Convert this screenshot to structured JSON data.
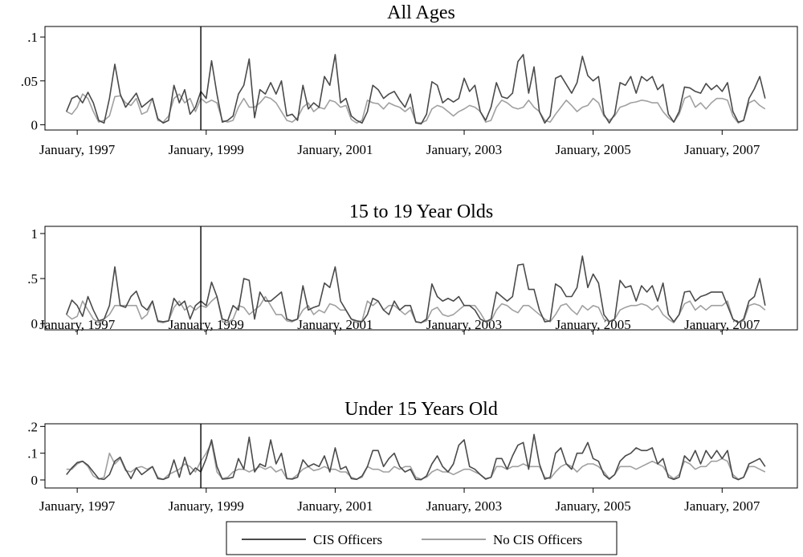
{
  "colors": {
    "cis": "#4a4a4a",
    "no_cis": "#a0a0a0",
    "axis": "#000000",
    "background": "#ffffff"
  },
  "legend": {
    "position": "bottom-center",
    "entries": [
      {
        "key": "cis",
        "label": "CIS Officers"
      },
      {
        "key": "no_cis",
        "label": "No CIS Officers"
      }
    ]
  },
  "chart_data": [
    {
      "type": "line",
      "title": "All Ages",
      "xlabel": "",
      "ylabel": "",
      "ylim": [
        -0.006,
        0.112
      ],
      "yticks": [
        0,
        0.05,
        0.1
      ],
      "ytick_labels": [
        "0",
        ".05",
        ".1"
      ],
      "xlim": [
        "1996-07",
        "2008-03"
      ],
      "xticks": [
        "1997-01",
        "1999-01",
        "2001-01",
        "2003-01",
        "2005-01",
        "2007-01"
      ],
      "xtick_labels": [
        "January, 1997",
        "January, 1999",
        "January, 2001",
        "January, 2003",
        "January, 2005",
        "January, 2007"
      ],
      "x_start": "1996-11",
      "x_end": "2008-02",
      "reference_line": "1998-12",
      "series": [
        {
          "key": "cis",
          "name": "CIS Officers",
          "values": [
            0.015,
            0.03,
            0.033,
            0.025,
            0.037,
            0.025,
            0.005,
            0.002,
            0.03,
            0.069,
            0.035,
            0.02,
            0.028,
            0.036,
            0.02,
            0.025,
            0.03,
            0.007,
            0.002,
            0.005,
            0.045,
            0.025,
            0.04,
            0.012,
            0.02,
            0.038,
            0.03,
            0.073,
            0.035,
            0.003,
            0.005,
            0.01,
            0.035,
            0.045,
            0.075,
            0.008,
            0.04,
            0.035,
            0.048,
            0.035,
            0.05,
            0.01,
            0.012,
            0.005,
            0.045,
            0.018,
            0.025,
            0.02,
            0.055,
            0.045,
            0.08,
            0.025,
            0.03,
            0.01,
            0.005,
            0.002,
            0.015,
            0.045,
            0.04,
            0.03,
            0.035,
            0.038,
            0.028,
            0.02,
            0.035,
            0.002,
            0.001,
            0.012,
            0.049,
            0.045,
            0.025,
            0.03,
            0.026,
            0.03,
            0.053,
            0.038,
            0.045,
            0.015,
            0.005,
            0.02,
            0.048,
            0.032,
            0.03,
            0.036,
            0.072,
            0.08,
            0.036,
            0.066,
            0.015,
            0.002,
            0.01,
            0.053,
            0.056,
            0.046,
            0.036,
            0.048,
            0.078,
            0.056,
            0.05,
            0.055,
            0.012,
            0.002,
            0.012,
            0.048,
            0.045,
            0.055,
            0.036,
            0.055,
            0.05,
            0.055,
            0.04,
            0.046,
            0.012,
            0.003,
            0.015,
            0.043,
            0.042,
            0.038,
            0.036,
            0.047,
            0.04,
            0.045,
            0.038,
            0.048,
            0.015,
            0.003,
            0.005,
            0.03,
            0.041,
            0.055,
            0.03
          ]
        },
        {
          "key": "no_cis",
          "name": "No CIS Officers",
          "values": [
            0.015,
            0.012,
            0.02,
            0.035,
            0.03,
            0.015,
            0.003,
            0.005,
            0.01,
            0.032,
            0.033,
            0.025,
            0.022,
            0.03,
            0.012,
            0.015,
            0.03,
            0.005,
            0.003,
            0.01,
            0.03,
            0.035,
            0.025,
            0.03,
            0.015,
            0.03,
            0.025,
            0.028,
            0.025,
            0.005,
            0.003,
            0.005,
            0.02,
            0.03,
            0.02,
            0.02,
            0.025,
            0.032,
            0.03,
            0.025,
            0.015,
            0.005,
            0.003,
            0.008,
            0.02,
            0.025,
            0.015,
            0.02,
            0.018,
            0.028,
            0.026,
            0.02,
            0.022,
            0.006,
            0.002,
            0.005,
            0.028,
            0.025,
            0.024,
            0.018,
            0.025,
            0.022,
            0.02,
            0.015,
            0.02,
            0.003,
            0.002,
            0.005,
            0.018,
            0.022,
            0.02,
            0.015,
            0.01,
            0.015,
            0.018,
            0.022,
            0.02,
            0.015,
            0.003,
            0.005,
            0.02,
            0.028,
            0.025,
            0.02,
            0.018,
            0.02,
            0.028,
            0.02,
            0.015,
            0.005,
            0.003,
            0.012,
            0.02,
            0.028,
            0.022,
            0.015,
            0.02,
            0.022,
            0.03,
            0.025,
            0.01,
            0.005,
            0.01,
            0.02,
            0.022,
            0.025,
            0.026,
            0.028,
            0.027,
            0.025,
            0.025,
            0.015,
            0.008,
            0.003,
            0.012,
            0.03,
            0.033,
            0.02,
            0.025,
            0.018,
            0.025,
            0.03,
            0.03,
            0.028,
            0.01,
            0.002,
            0.005,
            0.025,
            0.028,
            0.022,
            0.018
          ]
        }
      ]
    },
    {
      "type": "line",
      "title": "15 to 19 Year Olds",
      "xlabel": "",
      "ylabel": "",
      "ylim": [
        -0.07,
        1.08
      ],
      "yticks": [
        0,
        0.5,
        1
      ],
      "ytick_labels": [
        "0",
        ".5",
        "1"
      ],
      "xlim": [
        "1996-07",
        "2008-03"
      ],
      "xticks": [
        "1997-01",
        "1999-01",
        "2001-01",
        "2003-01",
        "2005-01",
        "2007-01"
      ],
      "xtick_labels": [
        "January, 1997",
        "January, 1999",
        "January, 2001",
        "January, 2003",
        "January, 2005",
        "January, 2007"
      ],
      "x_start": "1996-11",
      "x_end": "2008-02",
      "reference_line": "1998-12",
      "series": [
        {
          "key": "cis",
          "name": "CIS Officers",
          "values": [
            0.1,
            0.26,
            0.2,
            0.08,
            0.3,
            0.15,
            0.03,
            0.05,
            0.2,
            0.63,
            0.2,
            0.18,
            0.3,
            0.36,
            0.2,
            0.15,
            0.25,
            0.03,
            0.02,
            0.03,
            0.28,
            0.2,
            0.25,
            0.05,
            0.2,
            0.25,
            0.2,
            0.46,
            0.3,
            0.05,
            0.03,
            0.2,
            0.15,
            0.5,
            0.48,
            0.05,
            0.35,
            0.25,
            0.25,
            0.3,
            0.35,
            0.05,
            0.03,
            0.05,
            0.42,
            0.15,
            0.18,
            0.2,
            0.45,
            0.4,
            0.63,
            0.25,
            0.15,
            0.05,
            0.03,
            0.02,
            0.1,
            0.28,
            0.25,
            0.15,
            0.1,
            0.25,
            0.15,
            0.2,
            0.2,
            0.02,
            0.01,
            0.05,
            0.44,
            0.3,
            0.25,
            0.28,
            0.25,
            0.3,
            0.2,
            0.2,
            0.15,
            0.05,
            0.02,
            0.05,
            0.35,
            0.3,
            0.25,
            0.3,
            0.65,
            0.66,
            0.38,
            0.38,
            0.15,
            0.02,
            0.03,
            0.44,
            0.4,
            0.3,
            0.3,
            0.4,
            0.75,
            0.4,
            0.55,
            0.45,
            0.1,
            0.02,
            0.05,
            0.48,
            0.4,
            0.42,
            0.25,
            0.42,
            0.35,
            0.42,
            0.25,
            0.45,
            0.1,
            0.02,
            0.1,
            0.35,
            0.36,
            0.25,
            0.3,
            0.32,
            0.35,
            0.35,
            0.35,
            0.2,
            0.05,
            0.01,
            0.05,
            0.25,
            0.3,
            0.5,
            0.2
          ]
        },
        {
          "key": "no_cis",
          "name": "No CIS Officers",
          "values": [
            0.1,
            0.05,
            0.08,
            0.25,
            0.15,
            0.05,
            0.01,
            0.05,
            0.1,
            0.2,
            0.2,
            0.2,
            0.2,
            0.2,
            0.05,
            0.1,
            0.25,
            0.02,
            0.01,
            0.03,
            0.18,
            0.25,
            0.15,
            0.2,
            0.15,
            0.2,
            0.18,
            0.25,
            0.3,
            0.02,
            0.01,
            0.05,
            0.2,
            0.18,
            0.1,
            0.15,
            0.2,
            0.3,
            0.2,
            0.1,
            0.1,
            0.03,
            0.02,
            0.05,
            0.15,
            0.2,
            0.1,
            0.15,
            0.12,
            0.22,
            0.2,
            0.15,
            0.15,
            0.05,
            0.01,
            0.03,
            0.25,
            0.2,
            0.25,
            0.15,
            0.2,
            0.2,
            0.15,
            0.1,
            0.15,
            0.02,
            0.01,
            0.03,
            0.15,
            0.18,
            0.1,
            0.08,
            0.1,
            0.15,
            0.2,
            0.2,
            0.2,
            0.12,
            0.02,
            0.03,
            0.15,
            0.22,
            0.2,
            0.15,
            0.12,
            0.2,
            0.2,
            0.15,
            0.1,
            0.05,
            0.02,
            0.1,
            0.2,
            0.22,
            0.15,
            0.1,
            0.2,
            0.15,
            0.2,
            0.18,
            0.05,
            0.02,
            0.05,
            0.15,
            0.18,
            0.2,
            0.2,
            0.22,
            0.2,
            0.15,
            0.2,
            0.1,
            0.05,
            0.01,
            0.1,
            0.22,
            0.25,
            0.15,
            0.2,
            0.15,
            0.2,
            0.2,
            0.2,
            0.25,
            0.05,
            0.01,
            0.03,
            0.2,
            0.22,
            0.2,
            0.15
          ]
        }
      ]
    },
    {
      "type": "line",
      "title": "Under 15 Years Old",
      "xlabel": "",
      "ylabel": "",
      "ylim": [
        -0.03,
        0.21
      ],
      "yticks": [
        0,
        0.1,
        0.2
      ],
      "ytick_labels": [
        "0",
        ".1",
        ".2"
      ],
      "xlim": [
        "1996-07",
        "2008-03"
      ],
      "xticks": [
        "1997-01",
        "1999-01",
        "2001-01",
        "2003-01",
        "2005-01",
        "2007-01"
      ],
      "xtick_labels": [
        "January, 1997",
        "January, 1999",
        "January, 2001",
        "January, 2003",
        "January, 2005",
        "January, 2007"
      ],
      "x_start": "1996-11",
      "x_end": "2008-02",
      "reference_line": "1998-12",
      "series": [
        {
          "key": "cis",
          "name": "CIS Officers",
          "values": [
            0.02,
            0.045,
            0.065,
            0.07,
            0.055,
            0.03,
            0.005,
            0.002,
            0.02,
            0.07,
            0.085,
            0.04,
            0.005,
            0.045,
            0.02,
            0.035,
            0.05,
            0.005,
            0.002,
            0.01,
            0.075,
            0.01,
            0.085,
            0.02,
            0.045,
            0.03,
            0.08,
            0.15,
            0.05,
            0.003,
            0.005,
            0.01,
            0.08,
            0.04,
            0.16,
            0.03,
            0.06,
            0.05,
            0.15,
            0.06,
            0.1,
            0.005,
            0.003,
            0.01,
            0.075,
            0.05,
            0.06,
            0.05,
            0.09,
            0.03,
            0.12,
            0.04,
            0.05,
            0.005,
            0.002,
            0.015,
            0.05,
            0.11,
            0.11,
            0.05,
            0.08,
            0.1,
            0.05,
            0.03,
            0.04,
            0.002,
            0.001,
            0.015,
            0.06,
            0.09,
            0.05,
            0.03,
            0.06,
            0.13,
            0.15,
            0.05,
            0.04,
            0.02,
            0.003,
            0.01,
            0.08,
            0.08,
            0.04,
            0.09,
            0.13,
            0.14,
            0.04,
            0.17,
            0.06,
            0.003,
            0.01,
            0.1,
            0.12,
            0.06,
            0.04,
            0.1,
            0.1,
            0.14,
            0.08,
            0.07,
            0.02,
            0.003,
            0.02,
            0.07,
            0.09,
            0.1,
            0.12,
            0.11,
            0.11,
            0.12,
            0.06,
            0.08,
            0.01,
            0.002,
            0.01,
            0.09,
            0.07,
            0.11,
            0.06,
            0.11,
            0.08,
            0.11,
            0.08,
            0.11,
            0.01,
            0.001,
            0.01,
            0.06,
            0.07,
            0.08,
            0.05
          ]
        },
        {
          "key": "no_cis",
          "name": "No CIS Officers",
          "values": [
            0.04,
            0.04,
            0.06,
            0.07,
            0.05,
            0.015,
            0.003,
            0.01,
            0.1,
            0.06,
            0.08,
            0.035,
            0.03,
            0.045,
            0.05,
            0.04,
            0.05,
            0.01,
            0.002,
            0.02,
            0.03,
            0.04,
            0.06,
            0.05,
            0.03,
            0.07,
            0.1,
            0.14,
            0.03,
            0.005,
            0.01,
            0.03,
            0.04,
            0.04,
            0.03,
            0.04,
            0.05,
            0.04,
            0.05,
            0.03,
            0.04,
            0.005,
            0.005,
            0.02,
            0.04,
            0.05,
            0.035,
            0.04,
            0.05,
            0.04,
            0.04,
            0.03,
            0.03,
            0.01,
            0.003,
            0.01,
            0.05,
            0.04,
            0.04,
            0.03,
            0.03,
            0.05,
            0.04,
            0.05,
            0.05,
            0.01,
            0.003,
            0.01,
            0.03,
            0.04,
            0.03,
            0.03,
            0.02,
            0.03,
            0.04,
            0.04,
            0.03,
            0.02,
            0.005,
            0.01,
            0.05,
            0.05,
            0.04,
            0.05,
            0.05,
            0.06,
            0.05,
            0.05,
            0.05,
            0.01,
            0.005,
            0.03,
            0.05,
            0.06,
            0.05,
            0.03,
            0.05,
            0.06,
            0.06,
            0.05,
            0.03,
            0.005,
            0.02,
            0.05,
            0.05,
            0.05,
            0.04,
            0.05,
            0.06,
            0.07,
            0.06,
            0.05,
            0.02,
            0.005,
            0.02,
            0.07,
            0.06,
            0.04,
            0.05,
            0.05,
            0.07,
            0.07,
            0.08,
            0.07,
            0.02,
            0.003,
            0.01,
            0.05,
            0.05,
            0.04,
            0.03
          ]
        }
      ]
    }
  ]
}
